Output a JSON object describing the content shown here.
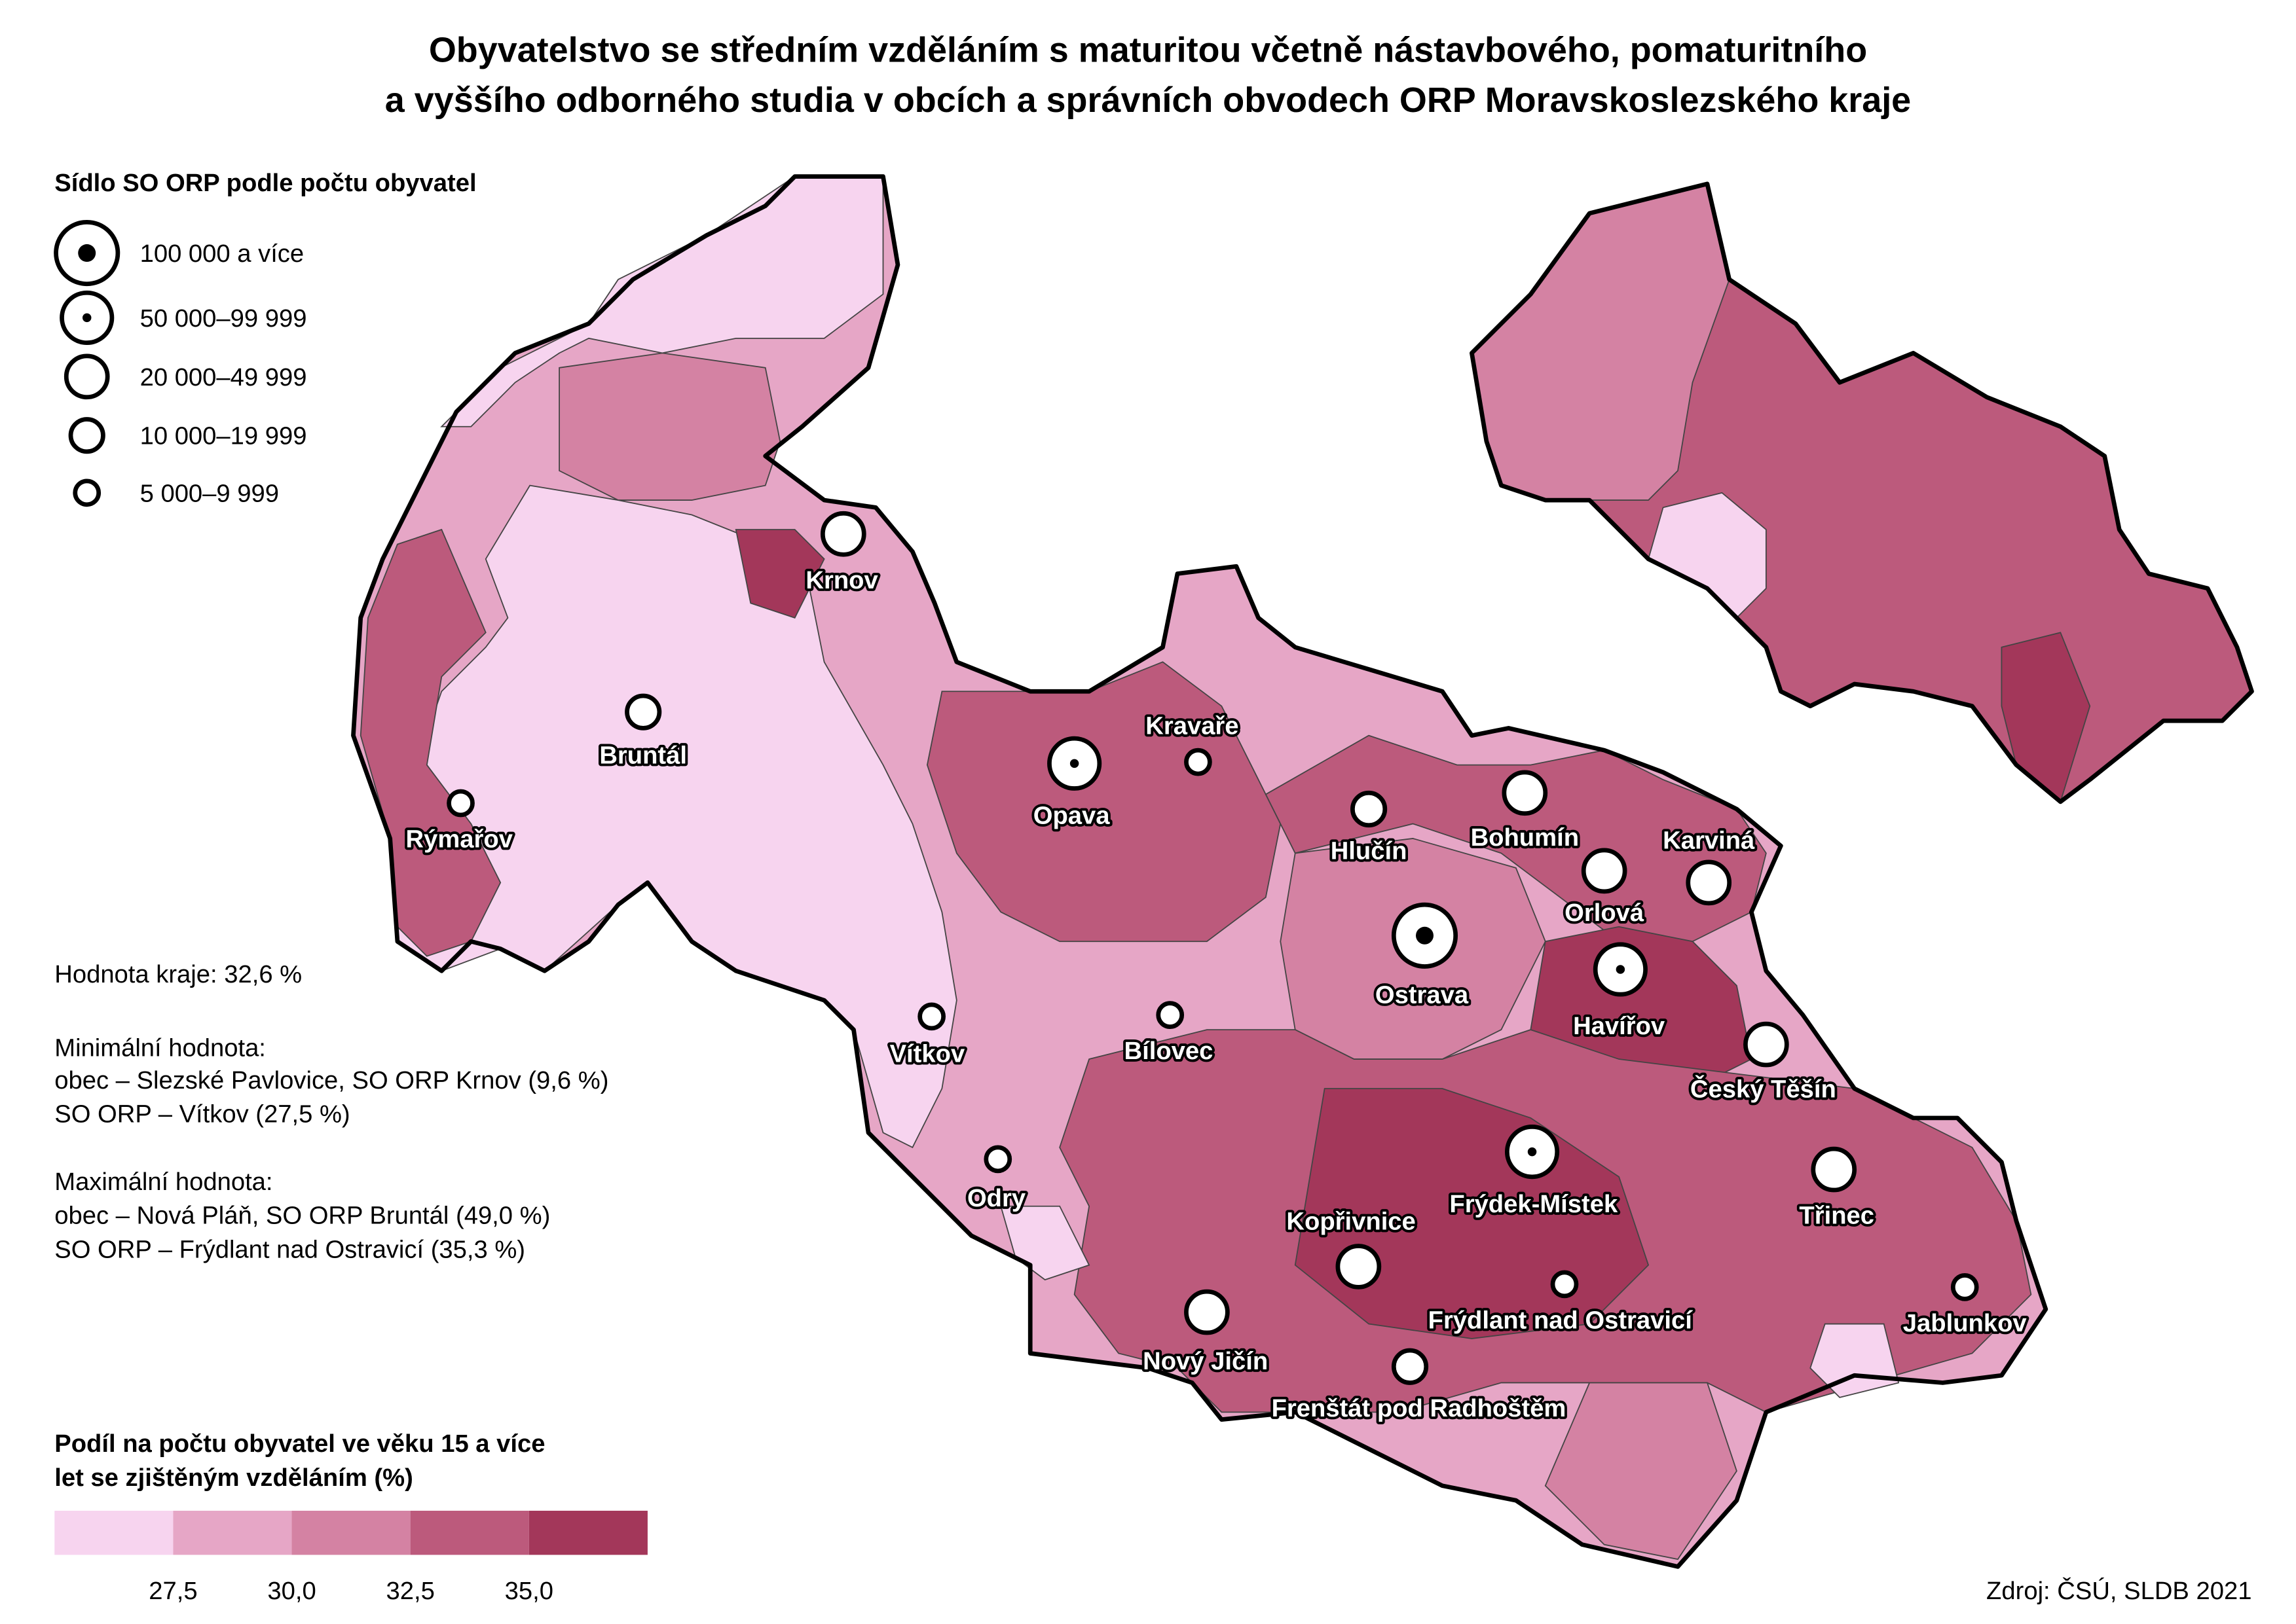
{
  "title": [
    "Obyvatelstvo se středním vzděláním s maturitou včetně nástavbového, pomaturitního",
    "a vyššího odborného studia v obcích a správních obvodech ORP Moravskoslezského kraje"
  ],
  "size_legend": {
    "title": "Sídlo SO ORP podle počtu obyvatel",
    "entries": [
      "100 000 a více",
      "50 000–99 999",
      "20 000–49 999",
      "10 000–19 999",
      "5 000–9 999"
    ]
  },
  "notes": [
    "Hodnota kraje: 32,6 %",
    "Minimální hodnota:",
    "obec – Slezské Pavlovice, SO ORP Krnov (9,6 %)",
    "SO ORP – Vítkov (27,5 %)",
    "Maximální hodnota:",
    "obec – Nová Pláň, SO ORP Bruntál (49,0 %)",
    "SO ORP – Frýdlant nad Ostravicí (35,3 %)"
  ],
  "color_legend": {
    "title": [
      "Podíl na počtu obyvatel ve věku 15 a více",
      "let se zjištěným vzděláním (%)"
    ],
    "colors": [
      "#f7d4ef",
      "#e6a6c6",
      "#d482a3",
      "#bc5a7c",
      "#a3375a"
    ],
    "ticks": [
      "27,5",
      "30,0",
      "32,5",
      "35,0"
    ]
  },
  "cities": [
    "Krnov",
    "Bruntál",
    "Rýmařov",
    "Opava",
    "Kravaře",
    "Hlučín",
    "Bohumín",
    "Karviná",
    "Orlová",
    "Ostrava",
    "Havířov",
    "Vítkov",
    "Bílovec",
    "Český Těšín",
    "Odry",
    "Frýdek-Místek",
    "Třinec",
    "Kopřivnice",
    "Nový Jičín",
    "Frýdlant nad Ostravicí",
    "Jablunkov",
    "Frenštát pod Radhoštěm"
  ],
  "source": "Zdroj: ČSÚ, SLDB 2021"
}
